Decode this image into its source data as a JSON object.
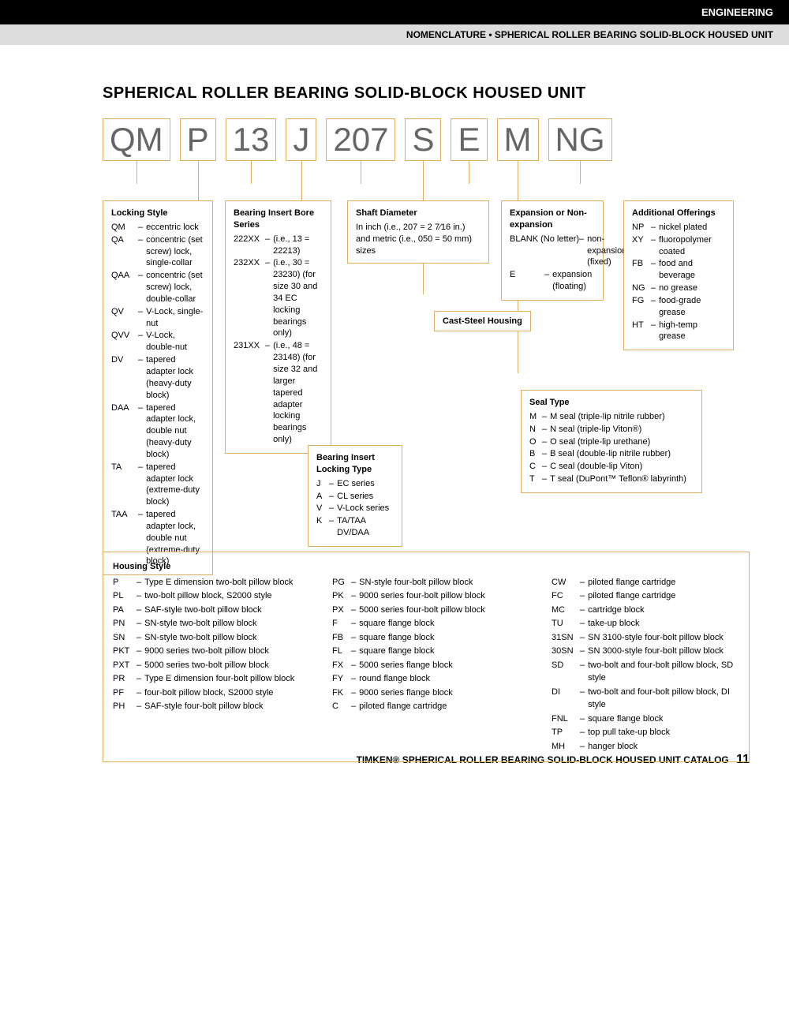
{
  "header": {
    "topbar": "ENGINEERING",
    "subbar": "NOMENCLATURE • SPHERICAL ROLLER BEARING SOLID-BLOCK HOUSED UNIT"
  },
  "title": "SPHERICAL ROLLER BEARING SOLID-BLOCK HOUSED UNIT",
  "codes": [
    "QM",
    "P",
    "13",
    "J",
    "207",
    "S",
    "E",
    "M",
    "NG"
  ],
  "colors": {
    "border": "#e0b060",
    "codeText": "#666666"
  },
  "blocks": {
    "locking": {
      "title": "Locking Style",
      "items": [
        {
          "c": "QM",
          "t": "eccentric lock"
        },
        {
          "c": "QA",
          "t": "concentric (set screw) lock, single-collar"
        },
        {
          "c": "QAA",
          "t": "concentric (set screw) lock, double-collar"
        },
        {
          "c": "QV",
          "t": "V-Lock, single-nut"
        },
        {
          "c": "QVV",
          "t": "V-Lock, double-nut"
        },
        {
          "c": "DV",
          "t": "tapered adapter lock (heavy-duty block)"
        },
        {
          "c": "DAA",
          "t": "tapered adapter lock, double nut (heavy-duty block)"
        },
        {
          "c": "TA",
          "t": "tapered adapter lock (extreme-duty block)"
        },
        {
          "c": "TAA",
          "t": "tapered adapter lock, double nut (extreme-duty block)"
        }
      ]
    },
    "bore": {
      "title": "Bearing Insert Bore Series",
      "items": [
        {
          "c": "222XX",
          "t": "(i.e., 13 = 22213)"
        },
        {
          "c": "232XX",
          "t": "(i.e., 30 = 23230) (for size 30 and 34 EC locking bearings only)"
        },
        {
          "c": "231XX",
          "t": "(i.e., 48 = 23148) (for size 32 and larger tapered adapter locking bearings only)"
        }
      ]
    },
    "locktype": {
      "title": "Bearing Insert Locking Type",
      "items": [
        {
          "c": "J",
          "t": "EC series"
        },
        {
          "c": "A",
          "t": "CL series"
        },
        {
          "c": "V",
          "t": "V-Lock series"
        },
        {
          "c": "K",
          "t": "TA/TAA DV/DAA"
        }
      ]
    },
    "shaft": {
      "title": "Shaft Diameter",
      "text": "In inch (i.e., 207 = 2 7⁄16 in.) and metric (i.e., 050 = 50 mm) sizes"
    },
    "cast": {
      "title": "Cast-Steel Housing"
    },
    "expansion": {
      "title": "Expansion or Non-expansion",
      "items": [
        {
          "c": "BLANK (No letter)",
          "t": "non-expansion (fixed)"
        },
        {
          "c": "E",
          "t": "expansion (floating)"
        }
      ]
    },
    "seal": {
      "title": "Seal Type",
      "items": [
        {
          "c": "M",
          "t": "M seal (triple-lip nitrile rubber)"
        },
        {
          "c": "N",
          "t": "N seal (triple-lip Viton®)"
        },
        {
          "c": "O",
          "t": "O seal (triple-lip urethane)"
        },
        {
          "c": "B",
          "t": "B seal (double-lip nitrile rubber)"
        },
        {
          "c": "C",
          "t": "C seal (double-lip Viton)"
        },
        {
          "c": "T",
          "t": "T seal (DuPont™ Teflon® labyrinth)"
        }
      ]
    },
    "additional": {
      "title": "Additional Offerings",
      "items": [
        {
          "c": "NP",
          "t": "nickel plated"
        },
        {
          "c": "XY",
          "t": "fluoropolymer coated"
        },
        {
          "c": "FB",
          "t": "food and beverage"
        },
        {
          "c": "NG",
          "t": "no grease"
        },
        {
          "c": "FG",
          "t": "food-grade grease"
        },
        {
          "c": "HT",
          "t": "high-temp grease"
        }
      ]
    },
    "housing": {
      "title": "Housing Style",
      "col1": [
        {
          "c": "P",
          "t": "Type E dimension two-bolt pillow block"
        },
        {
          "c": "PL",
          "t": "two-bolt pillow block, S2000 style"
        },
        {
          "c": "PA",
          "t": "SAF-style two-bolt pillow block"
        },
        {
          "c": "PN",
          "t": "SN-style two-bolt pillow block"
        },
        {
          "c": "SN",
          "t": "SN-style two-bolt pillow block"
        },
        {
          "c": "PKT",
          "t": "9000 series two-bolt pillow block"
        },
        {
          "c": "PXT",
          "t": "5000 series two-bolt pillow block"
        },
        {
          "c": "PR",
          "t": "Type E dimension four-bolt pillow block"
        },
        {
          "c": "PF",
          "t": "four-bolt pillow block, S2000 style"
        },
        {
          "c": "PH",
          "t": "SAF-style four-bolt pillow block"
        }
      ],
      "col2": [
        {
          "c": "PG",
          "t": "SN-style four-bolt pillow block"
        },
        {
          "c": "PK",
          "t": "9000 series four-bolt pillow block"
        },
        {
          "c": "PX",
          "t": "5000 series four-bolt pillow block"
        },
        {
          "c": "F",
          "t": "square flange block"
        },
        {
          "c": "FB",
          "t": "square flange block"
        },
        {
          "c": "FL",
          "t": "square flange block"
        },
        {
          "c": "FX",
          "t": "5000 series flange block"
        },
        {
          "c": "FY",
          "t": "round flange block"
        },
        {
          "c": "FK",
          "t": "9000 series flange block"
        },
        {
          "c": "C",
          "t": "piloted flange cartridge"
        }
      ],
      "col3": [
        {
          "c": "CW",
          "t": "piloted flange cartridge"
        },
        {
          "c": "FC",
          "t": "piloted flange cartridge"
        },
        {
          "c": "MC",
          "t": "cartridge block"
        },
        {
          "c": "TU",
          "t": "take-up block"
        },
        {
          "c": "31SN",
          "t": "SN 3100-style four-bolt pillow block"
        },
        {
          "c": "30SN",
          "t": "SN 3000-style four-bolt pillow block"
        },
        {
          "c": "SD",
          "t": "two-bolt and four-bolt pillow block, SD style"
        },
        {
          "c": "DI",
          "t": "two-bolt and four-bolt pillow block, DI style"
        },
        {
          "c": "FNL",
          "t": "square flange block"
        },
        {
          "c": "TP",
          "t": "top pull take-up block"
        },
        {
          "c": "MH",
          "t": "hanger block"
        }
      ]
    }
  },
  "footer": {
    "text": "TIMKEN® SPHERICAL ROLLER BEARING SOLID-BLOCK HOUSED UNIT CATALOG",
    "page": "11"
  }
}
